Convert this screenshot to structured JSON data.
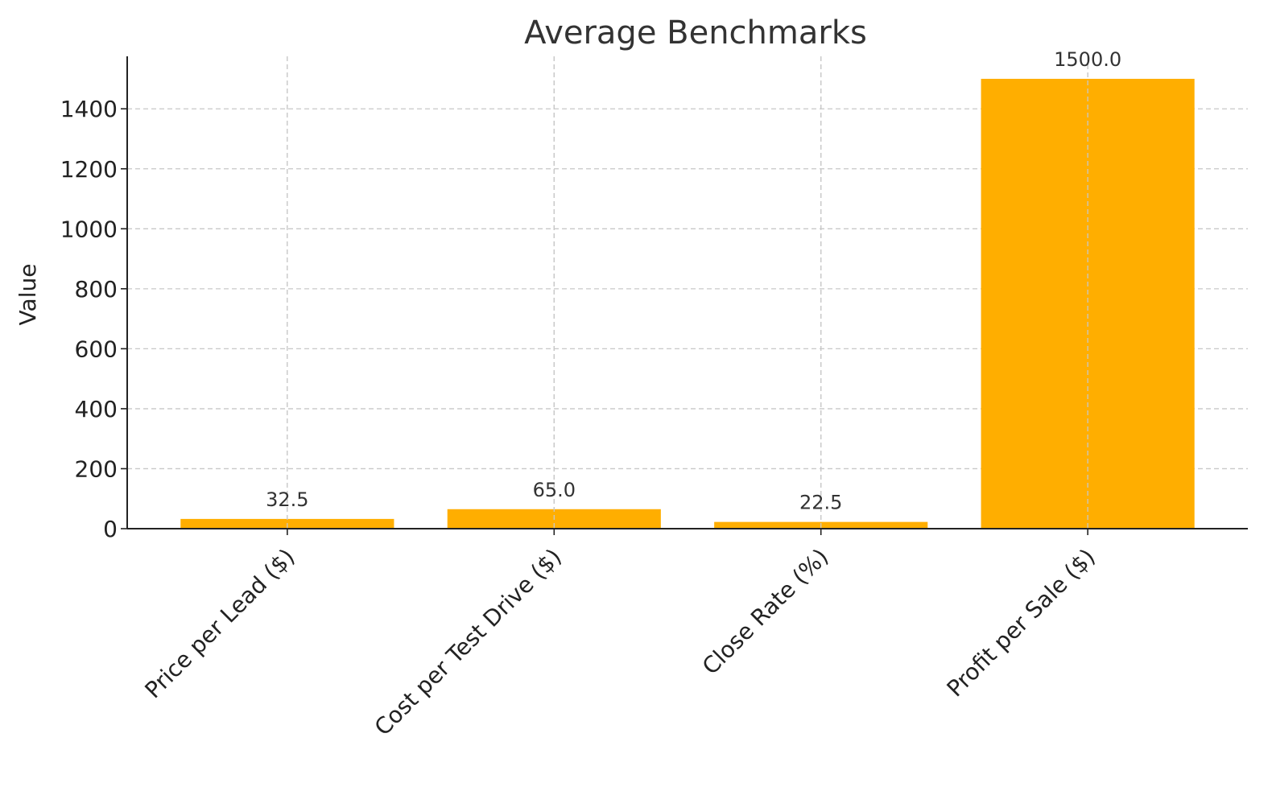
{
  "chart_data": {
    "type": "bar",
    "title": "Average Benchmarks",
    "xlabel": "",
    "ylabel": "Value",
    "categories": [
      "Price per Lead ($)",
      "Cost per Test Drive ($)",
      "Close Rate (%)",
      "Profit per Sale ($)"
    ],
    "values": [
      32.5,
      65.0,
      22.5,
      1500.0
    ],
    "value_labels": [
      "32.5",
      "65.0",
      "22.5",
      "1500.0"
    ],
    "yticks": [
      0,
      200,
      400,
      600,
      800,
      1000,
      1200,
      1400
    ],
    "ylim": [
      0,
      1575
    ],
    "grid": true,
    "bar_color": "#FFAE00"
  }
}
